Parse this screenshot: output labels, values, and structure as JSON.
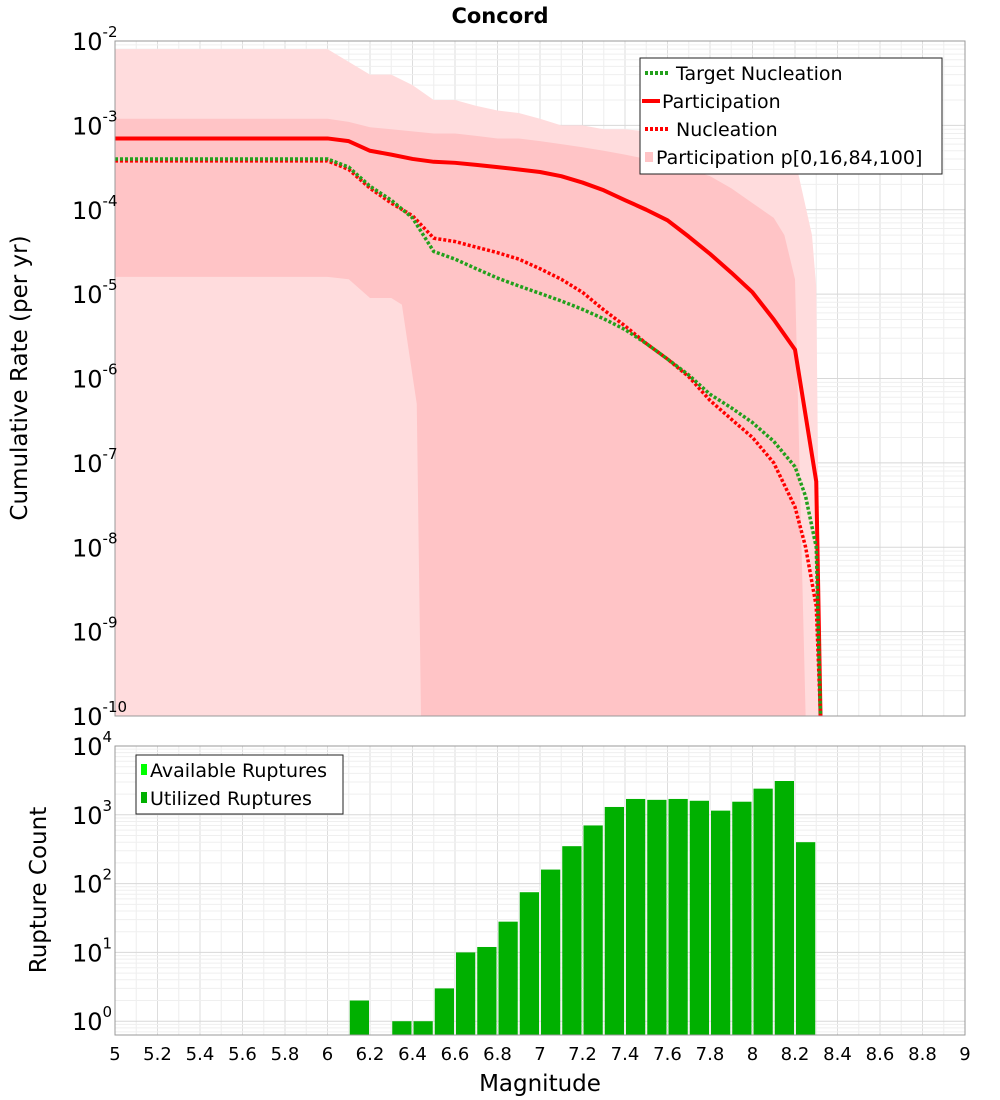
{
  "chart_data": [
    {
      "type": "line",
      "title": "Concord",
      "xlabel": "",
      "ylabel": "Cumulative Rate (per yr)",
      "xlim": [
        5,
        9
      ],
      "ylim_exp": [
        -10,
        -2
      ],
      "y_scale": "log",
      "grid": true,
      "legend_position": "top-right",
      "legend": [
        {
          "label": "Target Nucleation",
          "style": "dotted",
          "color": "#22a01c"
        },
        {
          "label": "Participation",
          "style": "solid",
          "color": "#ff0000"
        },
        {
          "label": "Nucleation",
          "style": "dotted",
          "color": "#ff0000"
        },
        {
          "label": "Participation p[0,16,84,100]",
          "style": "fill",
          "color": "#ffc4c6"
        }
      ],
      "series": [
        {
          "name": "Target Nucleation",
          "x": [
            5.0,
            6.0,
            6.1,
            6.2,
            6.3,
            6.4,
            6.5,
            6.6,
            6.7,
            6.8,
            6.9,
            7.0,
            7.1,
            7.2,
            7.3,
            7.4,
            7.5,
            7.6,
            7.7,
            7.8,
            7.9,
            8.0,
            8.1,
            8.2,
            8.25,
            8.3,
            8.32
          ],
          "y": [
            0.0004,
            0.0004,
            0.00032,
            0.00019,
            0.00013,
            8e-05,
            3.2e-05,
            2.6e-05,
            2e-05,
            1.55e-05,
            1.25e-05,
            1.02e-05,
            8.3e-06,
            6.6e-06,
            5.1e-06,
            3.8e-06,
            2.6e-06,
            1.7e-06,
            1.1e-06,
            6.5e-07,
            4.5e-07,
            3e-07,
            1.8e-07,
            9e-08,
            4e-08,
            1e-08,
            1e-10
          ]
        },
        {
          "name": "Participation",
          "x": [
            5.0,
            6.0,
            6.1,
            6.2,
            6.3,
            6.4,
            6.5,
            6.6,
            6.7,
            6.8,
            6.9,
            7.0,
            7.1,
            7.2,
            7.3,
            7.4,
            7.5,
            7.6,
            7.7,
            7.8,
            7.9,
            8.0,
            8.1,
            8.2,
            8.3,
            8.32
          ],
          "y": [
            0.0007,
            0.0007,
            0.00065,
            0.0005,
            0.00045,
            0.0004,
            0.00037,
            0.00036,
            0.00034,
            0.00032,
            0.0003,
            0.00028,
            0.00025,
            0.00021,
            0.00017,
            0.00013,
            0.0001,
            7.5e-05,
            4.8e-05,
            3e-05,
            1.8e-05,
            1.05e-05,
            5e-06,
            2.2e-06,
            6e-08,
            1e-10
          ]
        },
        {
          "name": "Nucleation",
          "x": [
            5.0,
            6.0,
            6.1,
            6.2,
            6.3,
            6.4,
            6.5,
            6.6,
            6.7,
            6.8,
            6.9,
            7.0,
            7.1,
            7.2,
            7.3,
            7.4,
            7.5,
            7.6,
            7.7,
            7.8,
            7.9,
            8.0,
            8.1,
            8.2,
            8.25,
            8.3,
            8.32
          ],
          "y": [
            0.00038,
            0.00038,
            0.0003,
            0.00018,
            0.00012,
            8.5e-05,
            4.6e-05,
            4.2e-05,
            3.6e-05,
            3.1e-05,
            2.6e-05,
            2e-05,
            1.5e-05,
            1.05e-05,
            6.5e-06,
            4.2e-06,
            2.6e-06,
            1.7e-06,
            1.05e-06,
            5.5e-07,
            3.3e-07,
            2e-07,
            1e-07,
            3e-08,
            1e-08,
            2e-09,
            1e-10
          ]
        }
      ],
      "bands": [
        {
          "name": "p0-p100",
          "x": [
            5.0,
            6.0,
            6.2,
            6.3,
            6.4,
            6.5,
            6.6,
            6.7,
            6.8,
            6.9,
            7.0,
            7.1,
            7.2,
            7.3,
            7.4,
            7.5,
            7.6,
            7.7,
            7.8,
            7.9,
            8.0,
            8.1,
            8.2,
            8.28,
            8.3
          ],
          "upper": [
            0.008,
            0.008,
            0.004,
            0.004,
            0.003,
            0.002,
            0.002,
            0.0017,
            0.0015,
            0.0014,
            0.0012,
            0.001,
            0.001,
            0.0009,
            0.0009,
            0.00085,
            0.0008,
            0.0008,
            0.00075,
            0.0007,
            0.0007,
            0.0007,
            0.0004,
            5e-05,
            1.2e-05
          ],
          "x_lower": [
            5.0,
            6.0,
            6.1,
            6.2,
            6.3,
            6.4,
            6.42,
            8.32
          ],
          "lower": [
            1e-10,
            1e-10,
            1e-10,
            1e-10,
            1e-10,
            1e-10,
            1e-10,
            1e-10
          ]
        },
        {
          "name": "p16-p84",
          "x": [
            5.0,
            6.0,
            6.1,
            6.2,
            6.3,
            6.4,
            6.5,
            6.6,
            6.7,
            6.8,
            6.9,
            7.0,
            7.1,
            7.2,
            7.3,
            7.4,
            7.5,
            7.6,
            7.7,
            7.8,
            7.9,
            8.0,
            8.1,
            8.15,
            8.2,
            8.25
          ],
          "upper": [
            0.0012,
            0.0012,
            0.0011,
            0.00095,
            0.0009,
            0.00085,
            0.0008,
            0.0008,
            0.00075,
            0.0007,
            0.0007,
            0.00065,
            0.0006,
            0.00055,
            0.0005,
            0.00045,
            0.0004,
            0.00035,
            0.0003,
            0.00025,
            0.00018,
            0.00012,
            8e-05,
            5e-05,
            1.5e-05,
            1e-10
          ],
          "x_lower": [
            5.0,
            6.0,
            6.1,
            6.2,
            6.3,
            6.35,
            6.42,
            6.44,
            8.25
          ],
          "lower": [
            1.6e-05,
            1.6e-05,
            1.5e-05,
            9e-06,
            9e-06,
            7.5e-06,
            5e-07,
            1e-10,
            1e-10
          ]
        }
      ]
    },
    {
      "type": "bar",
      "title": "",
      "xlabel": "Magnitude",
      "ylabel": "Rupture Count",
      "xlim": [
        5,
        9
      ],
      "ylim_exp": [
        -0.2,
        4
      ],
      "y_scale": "log",
      "grid": true,
      "legend_position": "top-left",
      "legend": [
        {
          "label": "Available Ruptures",
          "color": "#00ff00"
        },
        {
          "label": "Utilized Ruptures",
          "color": "#00b000"
        }
      ],
      "bar_width": 0.1,
      "centers": [
        6.15,
        6.35,
        6.45,
        6.55,
        6.65,
        6.75,
        6.85,
        6.95,
        7.05,
        7.15,
        7.25,
        7.35,
        7.45,
        7.55,
        7.65,
        7.75,
        7.85,
        7.95,
        8.05,
        8.15,
        8.25
      ],
      "values": [
        2,
        1,
        1,
        3,
        10,
        12,
        28,
        75,
        160,
        350,
        700,
        1300,
        1700,
        1650,
        1700,
        1600,
        1150,
        1550,
        2400,
        3100,
        400
      ]
    }
  ],
  "axes": {
    "x_ticks": [
      "5",
      "5.2",
      "5.4",
      "5.6",
      "5.8",
      "6",
      "6.2",
      "6.4",
      "6.6",
      "6.8",
      "7",
      "7.2",
      "7.4",
      "7.6",
      "7.8",
      "8",
      "8.2",
      "8.4",
      "8.6",
      "8.8",
      "9"
    ],
    "top_y_ticks": [
      {
        "base": "10",
        "exp": "-2"
      },
      {
        "base": "10",
        "exp": "-3"
      },
      {
        "base": "10",
        "exp": "-4"
      },
      {
        "base": "10",
        "exp": "-5"
      },
      {
        "base": "10",
        "exp": "-6"
      },
      {
        "base": "10",
        "exp": "-7"
      },
      {
        "base": "10",
        "exp": "-8"
      },
      {
        "base": "10",
        "exp": "-9"
      },
      {
        "base": "10",
        "exp": "-10"
      }
    ],
    "bottom_y_ticks": [
      {
        "base": "10",
        "exp": "4"
      },
      {
        "base": "10",
        "exp": "3"
      },
      {
        "base": "10",
        "exp": "2"
      },
      {
        "base": "10",
        "exp": "1"
      },
      {
        "base": "10",
        "exp": "0"
      }
    ]
  },
  "colors": {
    "band_outer": "#ffdcdd",
    "band_inner": "#ffc4c6",
    "participation": "#ff0000",
    "nucleation": "#ff0000",
    "target": "#22a01c",
    "bar": "#00b000",
    "available": "#00ff00"
  }
}
